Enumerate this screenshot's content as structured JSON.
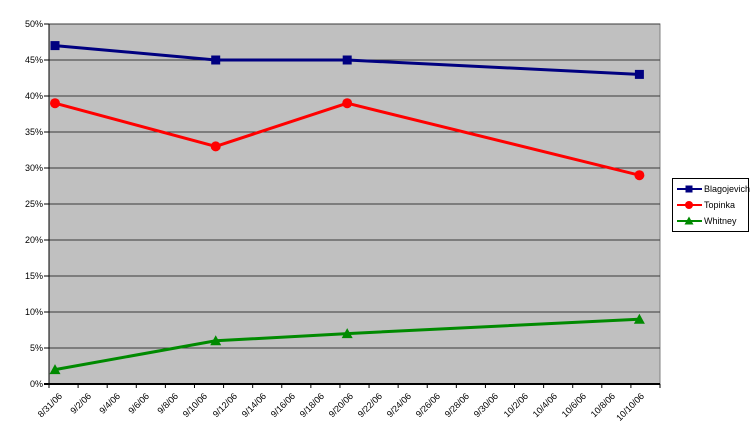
{
  "chart_data": {
    "type": "line",
    "title": "",
    "legend_position": "right",
    "grid": true,
    "plot_background": "#c0c0c0",
    "gridline_color": "#3a3a3a",
    "axis_color": "#000000",
    "x_axis": {
      "type": "date",
      "tick_labels": [
        "8/31/06",
        "9/2/06",
        "9/4/06",
        "9/6/06",
        "9/8/06",
        "9/10/06",
        "9/12/06",
        "9/14/06",
        "9/16/06",
        "9/18/06",
        "9/20/06",
        "9/22/06",
        "9/24/06",
        "9/26/06",
        "9/28/06",
        "9/30/06",
        "10/2/06",
        "10/4/06",
        "10/6/06",
        "10/8/06",
        "10/10/06"
      ],
      "span_days": 41
    },
    "y_axis": {
      "min": 0,
      "max": 50,
      "step": 5,
      "unit": "%",
      "tick_labels": [
        "0%",
        "5%",
        "10%",
        "15%",
        "20%",
        "25%",
        "30%",
        "35%",
        "40%",
        "45%",
        "50%"
      ]
    },
    "series": [
      {
        "name": "Blagojevich",
        "color": "#000080",
        "marker": "square",
        "x_dates": [
          "8/31/06",
          "9/11/06",
          "9/20/06",
          "10/10/06"
        ],
        "x_days": [
          0,
          11,
          20,
          40
        ],
        "values": [
          47,
          45,
          45,
          43
        ]
      },
      {
        "name": "Topinka",
        "color": "#ff0000",
        "marker": "circle",
        "x_dates": [
          "8/31/06",
          "9/11/06",
          "9/20/06",
          "10/10/06"
        ],
        "x_days": [
          0,
          11,
          20,
          40
        ],
        "values": [
          39,
          33,
          39,
          29
        ]
      },
      {
        "name": "Whitney",
        "color": "#008a00",
        "marker": "triangle",
        "x_dates": [
          "8/31/06",
          "9/11/06",
          "9/20/06",
          "10/10/06"
        ],
        "x_days": [
          0,
          11,
          20,
          40
        ],
        "values": [
          2,
          6,
          7,
          9
        ]
      }
    ]
  }
}
